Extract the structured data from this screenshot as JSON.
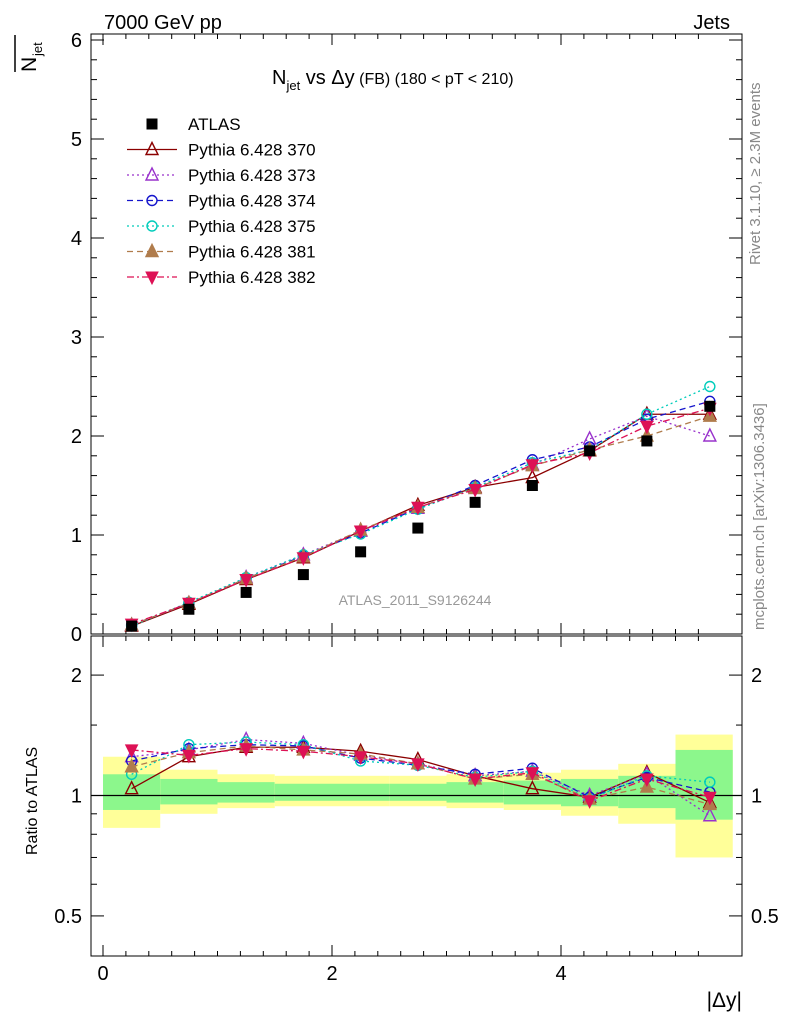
{
  "header": {
    "energy_label": "7000 GeV pp",
    "category_label": "Jets",
    "rivet_label": "Rivet 3.1.10, ≥ 2.3M events",
    "mcplots_label": "mcplots.cern.ch [arXiv:1306.3436]",
    "analysis_label": "ATLAS_2011_S9126244"
  },
  "chart_data": [
    {
      "type": "scatter",
      "title_main": "N",
      "title_sub": "jet",
      "title_vs": " vs Δy",
      "title_small": " (FB)",
      "title_cut": " (180 < pT < 210)",
      "ylabel_main": "N",
      "ylabel_sub": "jet",
      "xlabel": "|Δy|",
      "xlim": [
        -0.1,
        5.5
      ],
      "ylim": [
        0,
        6
      ],
      "x_ticks": [
        "0",
        "2",
        "4"
      ],
      "y_ticks": [
        "0",
        "1",
        "2",
        "3",
        "4",
        "5",
        "6"
      ],
      "x": [
        0.25,
        0.75,
        1.25,
        1.75,
        2.25,
        2.75,
        3.25,
        3.75,
        4.25,
        4.75,
        5.3
      ],
      "series": [
        {
          "name": "ATLAS",
          "color": "#000000",
          "marker": "square",
          "values": [
            0.08,
            0.25,
            0.42,
            0.6,
            0.83,
            1.07,
            1.33,
            1.5,
            1.85,
            1.95,
            2.3
          ]
        },
        {
          "name": "Pythia 6.428 370",
          "color": "#8b0000",
          "marker": "triangle-open",
          "dash": "solid",
          "values": [
            0.08,
            0.3,
            0.55,
            0.77,
            1.04,
            1.3,
            1.48,
            1.58,
            1.85,
            2.22,
            2.22
          ]
        },
        {
          "name": "Pythia 6.428 373",
          "color": "#9932cc",
          "marker": "triangle-open",
          "dash": "dotted",
          "values": [
            0.09,
            0.31,
            0.57,
            0.8,
            1.04,
            1.27,
            1.47,
            1.71,
            1.97,
            2.2,
            2.0
          ]
        },
        {
          "name": "Pythia 6.428 374",
          "color": "#1515cc",
          "marker": "circle-open",
          "dash": "dashed",
          "values": [
            0.09,
            0.31,
            0.56,
            0.79,
            1.02,
            1.27,
            1.5,
            1.76,
            1.89,
            2.17,
            2.35
          ]
        },
        {
          "name": "Pythia 6.428 375",
          "color": "#00ccbb",
          "marker": "circle-open",
          "dash": "dotted",
          "values": [
            0.08,
            0.32,
            0.57,
            0.8,
            1.01,
            1.26,
            1.48,
            1.73,
            1.86,
            2.22,
            2.5
          ]
        },
        {
          "name": "Pythia 6.428 381",
          "color": "#b07c4c",
          "marker": "triangle-filled",
          "dash": "dashed",
          "values": [
            0.09,
            0.31,
            0.56,
            0.78,
            1.05,
            1.28,
            1.47,
            1.7,
            1.86,
            2.0,
            2.2
          ]
        },
        {
          "name": "Pythia 6.428 382",
          "color": "#dd1155",
          "marker": "triangle-down-filled",
          "dash": "dashdot",
          "values": [
            0.1,
            0.31,
            0.55,
            0.77,
            1.04,
            1.28,
            1.46,
            1.71,
            1.83,
            2.1,
            2.28
          ]
        }
      ]
    },
    {
      "type": "scatter",
      "ylabel": "Ratio to ATLAS",
      "xlabel": "|Δy|",
      "xlim": [
        -0.1,
        5.5
      ],
      "ylim": [
        0.4,
        2.25
      ],
      "y_scale": "log",
      "x_ticks": [
        "0",
        "2",
        "4"
      ],
      "y_ticks": [
        "0.5",
        "1",
        "2"
      ],
      "reference_line": 1,
      "bins": [
        [
          0,
          0.5
        ],
        [
          0.5,
          1.0
        ],
        [
          1.0,
          1.5
        ],
        [
          1.5,
          2.0
        ],
        [
          2.0,
          2.5
        ],
        [
          2.5,
          3.0
        ],
        [
          3.0,
          3.5
        ],
        [
          3.5,
          4.0
        ],
        [
          4.0,
          4.5
        ],
        [
          4.5,
          5.0
        ],
        [
          5.0,
          5.5
        ]
      ],
      "band_stat": [
        [
          0.92,
          1.13
        ],
        [
          0.95,
          1.1
        ],
        [
          0.96,
          1.08
        ],
        [
          0.97,
          1.07
        ],
        [
          0.97,
          1.07
        ],
        [
          0.97,
          1.07
        ],
        [
          0.96,
          1.08
        ],
        [
          0.95,
          1.09
        ],
        [
          0.94,
          1.1
        ],
        [
          0.93,
          1.12
        ],
        [
          0.87,
          1.3
        ]
      ],
      "band_total": [
        [
          0.83,
          1.25
        ],
        [
          0.9,
          1.16
        ],
        [
          0.93,
          1.13
        ],
        [
          0.94,
          1.12
        ],
        [
          0.94,
          1.12
        ],
        [
          0.94,
          1.12
        ],
        [
          0.93,
          1.13
        ],
        [
          0.92,
          1.14
        ],
        [
          0.89,
          1.16
        ],
        [
          0.85,
          1.2
        ],
        [
          0.7,
          1.42
        ]
      ],
      "x": [
        0.25,
        0.75,
        1.25,
        1.75,
        2.25,
        2.75,
        3.25,
        3.75,
        4.25,
        4.75,
        5.3
      ],
      "series": [
        {
          "name": "Pythia 6.428 370",
          "color": "#8b0000",
          "marker": "triangle-open",
          "dash": "solid",
          "values": [
            1.04,
            1.25,
            1.32,
            1.32,
            1.29,
            1.23,
            1.12,
            1.04,
            0.99,
            1.14,
            0.96
          ]
        },
        {
          "name": "Pythia 6.428 373",
          "color": "#9932cc",
          "marker": "triangle-open",
          "dash": "dotted",
          "values": [
            1.25,
            1.3,
            1.38,
            1.35,
            1.26,
            1.2,
            1.12,
            1.15,
            1.0,
            1.13,
            0.89
          ]
        },
        {
          "name": "Pythia 6.428 374",
          "color": "#1515cc",
          "marker": "circle-open",
          "dash": "dashed",
          "values": [
            1.22,
            1.31,
            1.34,
            1.33,
            1.24,
            1.19,
            1.13,
            1.17,
            0.99,
            1.11,
            1.02
          ]
        },
        {
          "name": "Pythia 6.428 375",
          "color": "#00ccbb",
          "marker": "circle-open",
          "dash": "dotted",
          "values": [
            1.13,
            1.34,
            1.36,
            1.34,
            1.22,
            1.19,
            1.11,
            1.15,
            0.98,
            1.12,
            1.08
          ]
        },
        {
          "name": "Pythia 6.428 381",
          "color": "#b07c4c",
          "marker": "triangle-filled",
          "dash": "dashed",
          "values": [
            1.18,
            1.28,
            1.33,
            1.3,
            1.27,
            1.2,
            1.1,
            1.13,
            0.98,
            1.05,
            0.95
          ]
        },
        {
          "name": "Pythia 6.428 382",
          "color": "#dd1155",
          "marker": "triangle-down-filled",
          "dash": "dashdot",
          "values": [
            1.3,
            1.26,
            1.31,
            1.29,
            1.25,
            1.2,
            1.1,
            1.14,
            0.97,
            1.1,
            0.99
          ]
        }
      ]
    }
  ]
}
